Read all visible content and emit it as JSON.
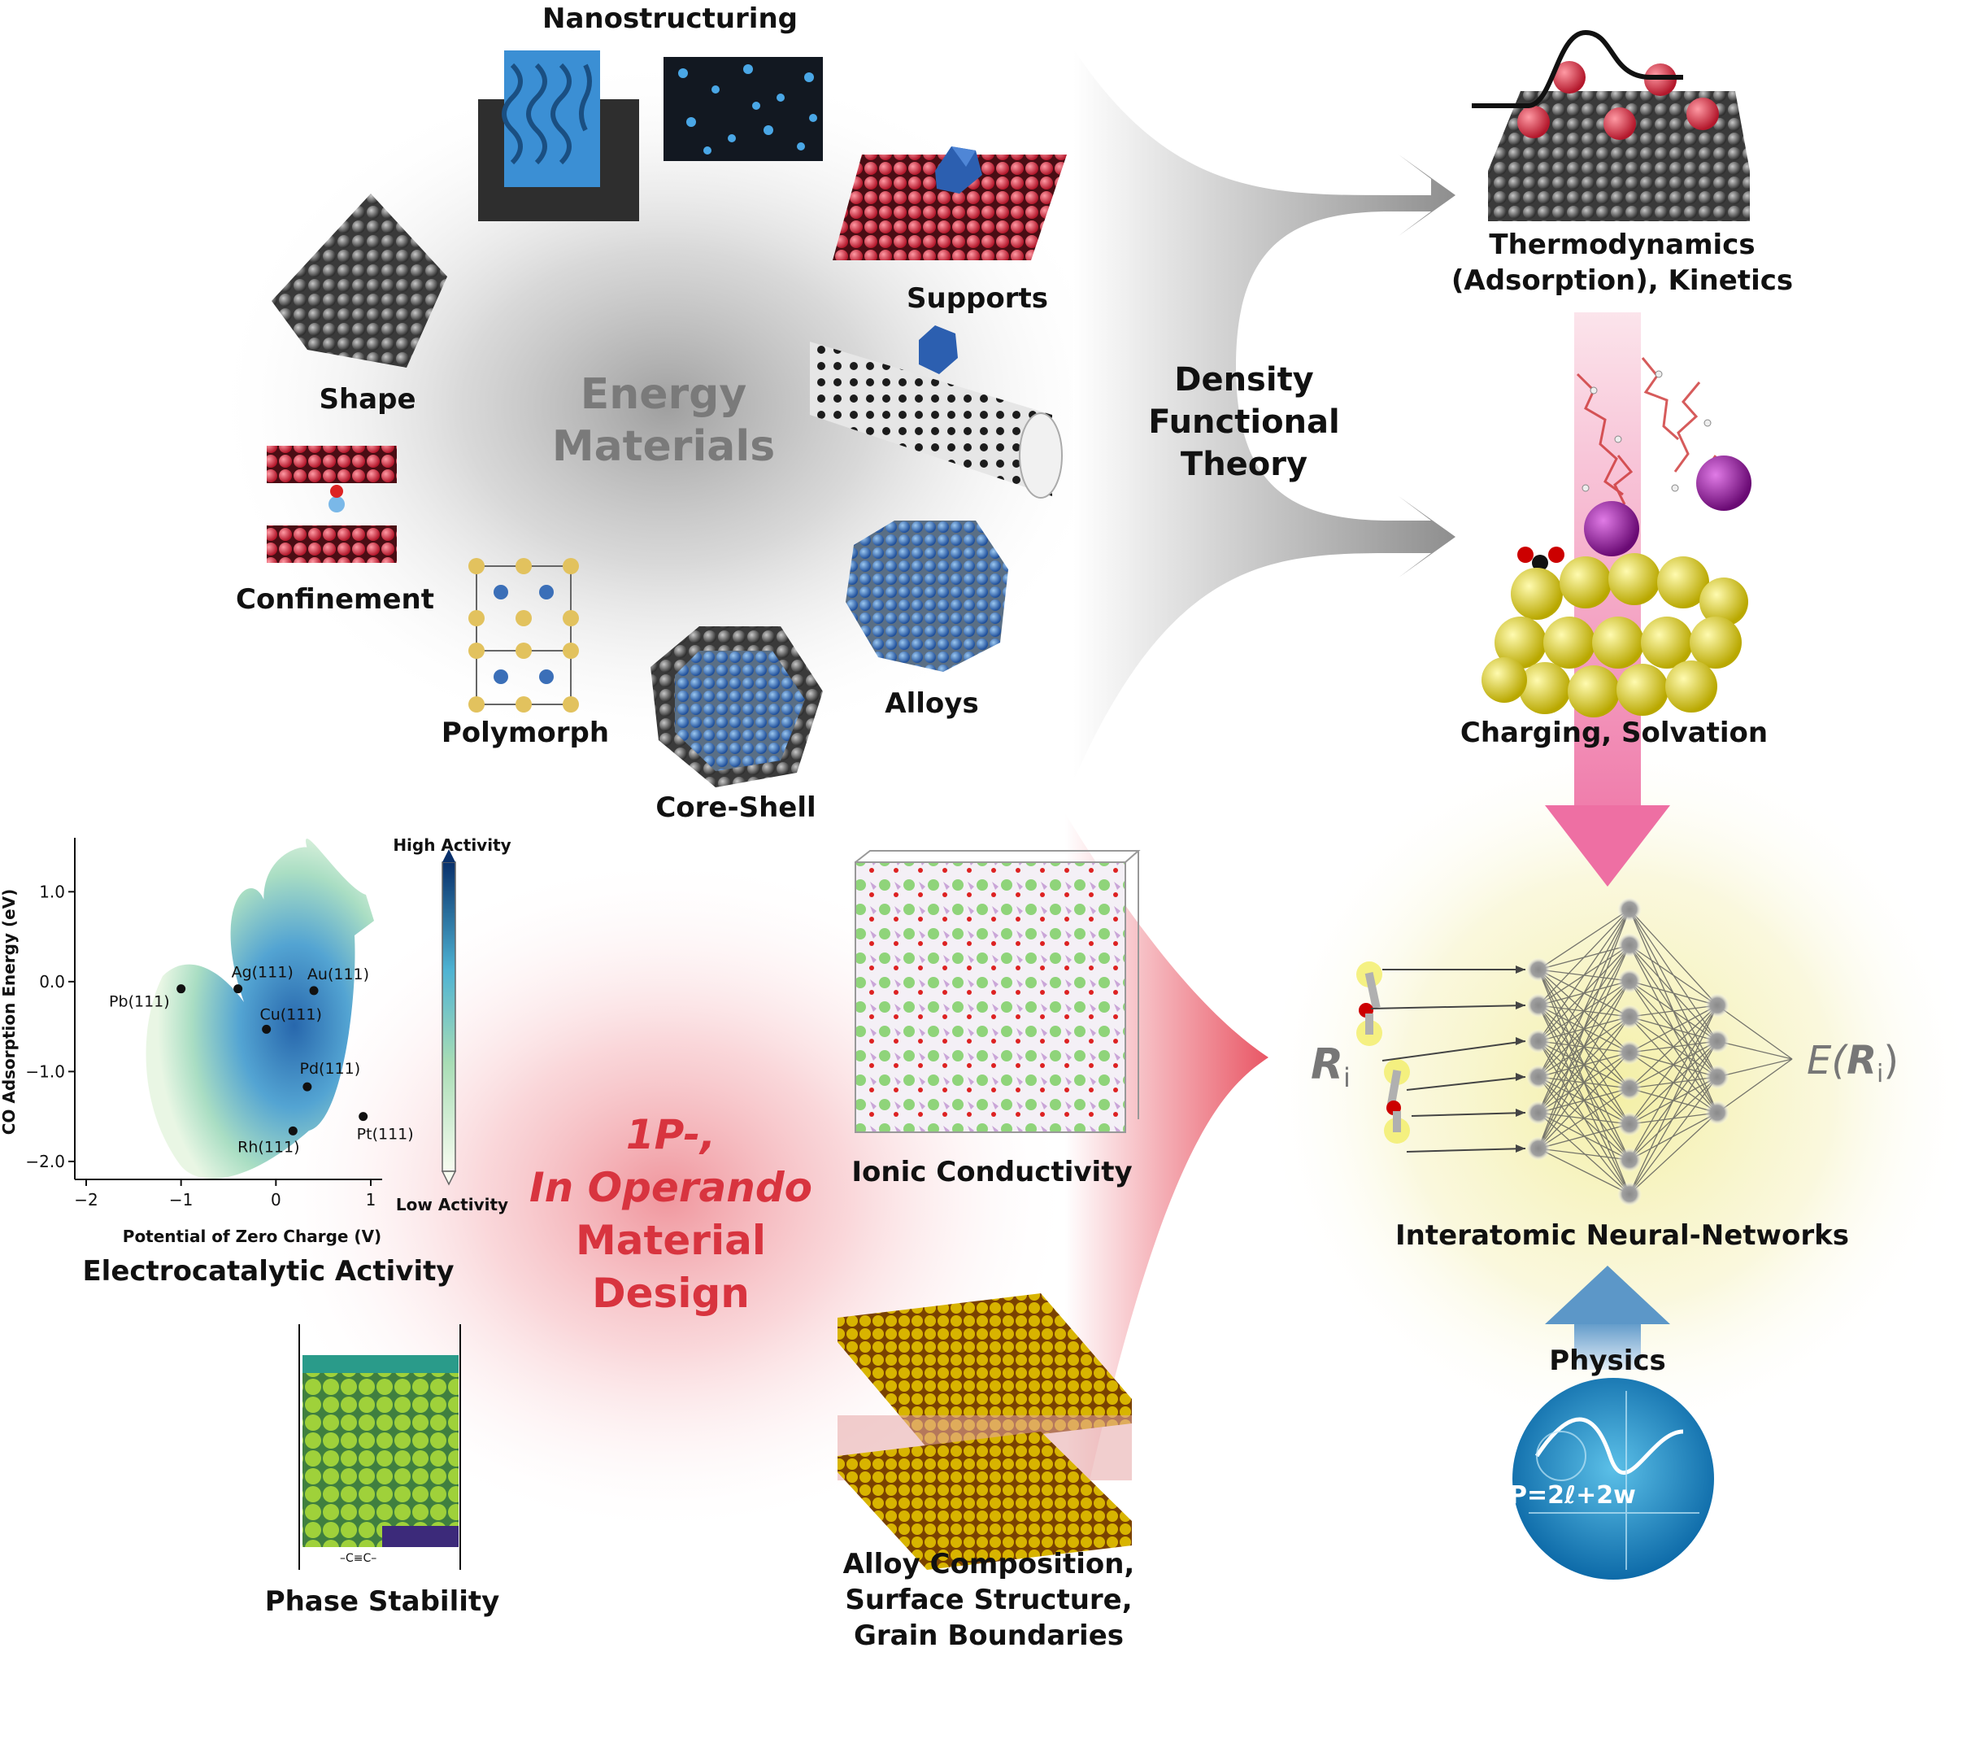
{
  "energy_materials": {
    "title_line1": "Energy",
    "title_line2": "Materials",
    "labels": {
      "nanostructuring": "Nanostructuring",
      "supports": "Supports",
      "shape": "Shape",
      "confinement": "Confinement",
      "polymorph": "Polymorph",
      "core_shell": "Core-Shell",
      "alloys": "Alloys"
    }
  },
  "dft": {
    "line1": "Density",
    "line2": "Functional",
    "line3": "Theory"
  },
  "right_column": {
    "thermo_line1": "Thermodynamics",
    "thermo_line2": "(Adsorption), Kinetics",
    "charging": "Charging, Solvation",
    "nn_title": "Interatomic Neural-Networks",
    "nn_input": "R",
    "nn_input_sub": "i",
    "nn_output_prefix": "E(",
    "nn_output_var": "R",
    "nn_output_sub": "i",
    "nn_output_suffix": ")",
    "physics": "Physics",
    "physics_formula": "P=2ℓ+2w"
  },
  "design": {
    "line1": "1P-,",
    "line2": "In Operando",
    "line3": "Material",
    "line4": "Design"
  },
  "applications": {
    "electrocatalytic": "Electrocatalytic Activity",
    "ionic": "Ionic Conductivity",
    "phase": "Phase Stability",
    "phase_annotation": "–C≡C–",
    "alloy_line1": "Alloy Composition,",
    "alloy_line2": "Surface Structure,",
    "alloy_line3": "Grain Boundaries"
  },
  "chart_data": {
    "type": "scatter",
    "xlabel": "Potential of Zero Charge (V)",
    "ylabel": "CO Adsorption Energy (eV)",
    "xlim": [
      -2,
      1
    ],
    "ylim": [
      -2.2,
      1.6
    ],
    "xticks": [
      "−2",
      "−1",
      "0",
      "1"
    ],
    "yticks": [
      "1.0",
      "0.0",
      "−1.0",
      "−2.0"
    ],
    "colorbar_top": "High Activity",
    "colorbar_bottom": "Low Activity",
    "points": [
      {
        "label": "Pb(111)",
        "x": -1.0,
        "y": -0.08
      },
      {
        "label": "Ag(111)",
        "x": -0.4,
        "y": -0.08
      },
      {
        "label": "Au(111)",
        "x": 0.4,
        "y": -0.1
      },
      {
        "label": "Cu(111)",
        "x": -0.1,
        "y": -0.53
      },
      {
        "label": "Pd(111)",
        "x": 0.33,
        "y": -1.17
      },
      {
        "label": "Pt(111)",
        "x": 0.92,
        "y": -1.5
      },
      {
        "label": "Rh(111)",
        "x": 0.18,
        "y": -1.66
      }
    ],
    "colors": {
      "high": "#08306b",
      "low": "#f7fcf0"
    }
  }
}
